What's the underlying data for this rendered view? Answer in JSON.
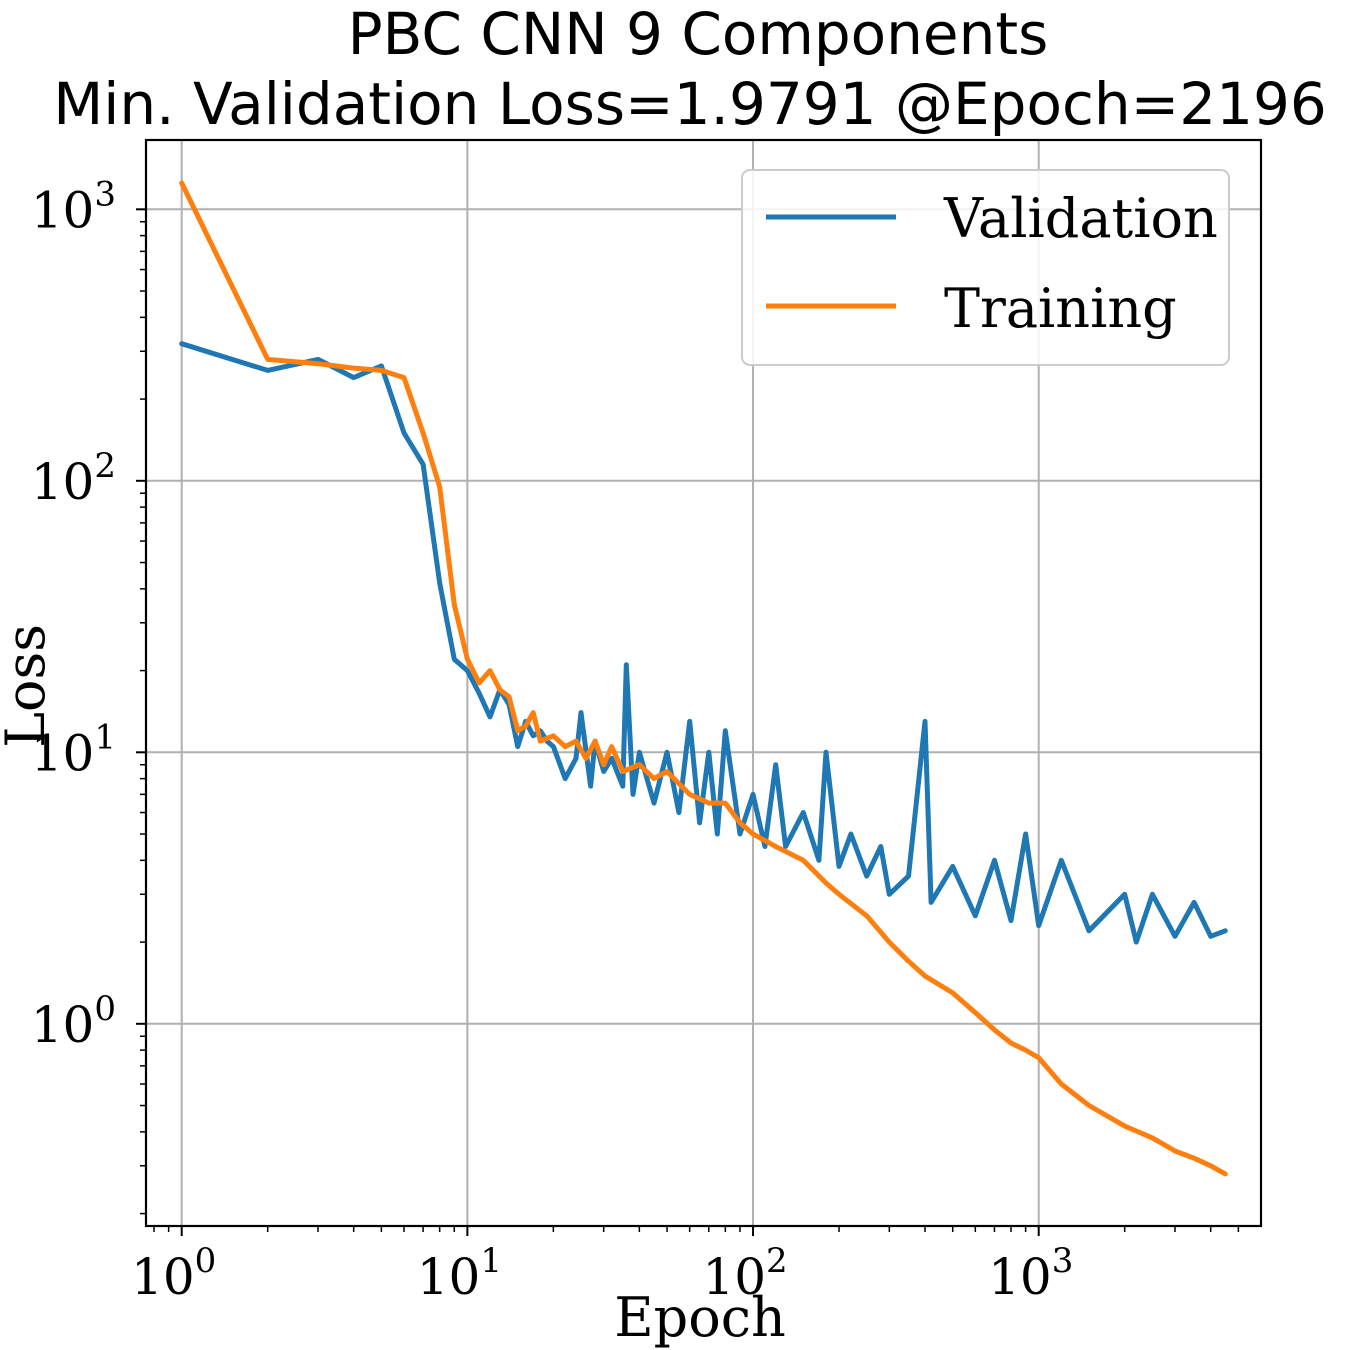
{
  "chart_data": {
    "type": "line",
    "title": "PBC CNN 9 Components",
    "subtitle": "Min. Validation Loss=1.9791 @Epoch=2196",
    "xlabel": "Epoch",
    "ylabel": "Loss",
    "xscale": "log",
    "yscale": "log",
    "xlim": [
      0.75,
      6000
    ],
    "ylim": [
      0.18,
      1800
    ],
    "grid": true,
    "legend_position": "top-right",
    "x_ticks": [
      {
        "base": "10",
        "exp": "0",
        "value": 1
      },
      {
        "base": "10",
        "exp": "1",
        "value": 10
      },
      {
        "base": "10",
        "exp": "2",
        "value": 100
      },
      {
        "base": "10",
        "exp": "3",
        "value": 1000
      }
    ],
    "y_ticks": [
      {
        "base": "10",
        "exp": "0",
        "value": 1
      },
      {
        "base": "10",
        "exp": "1",
        "value": 10
      },
      {
        "base": "10",
        "exp": "2",
        "value": 100
      },
      {
        "base": "10",
        "exp": "3",
        "value": 1000
      }
    ],
    "series": [
      {
        "name": "Validation",
        "color": "#1f77b4",
        "points": [
          [
            1,
            320
          ],
          [
            2,
            255
          ],
          [
            3,
            280
          ],
          [
            4,
            240
          ],
          [
            5,
            265
          ],
          [
            6,
            150
          ],
          [
            7,
            115
          ],
          [
            8,
            42
          ],
          [
            9,
            22
          ],
          [
            10,
            20
          ],
          [
            11,
            16.5
          ],
          [
            12,
            13.5
          ],
          [
            13,
            17
          ],
          [
            14,
            15
          ],
          [
            15,
            10.5
          ],
          [
            16,
            13
          ],
          [
            17,
            11.5
          ],
          [
            18,
            12
          ],
          [
            19,
            11
          ],
          [
            20,
            10.5
          ],
          [
            22,
            8
          ],
          [
            24,
            9.5
          ],
          [
            25,
            14
          ],
          [
            27,
            7.5
          ],
          [
            28,
            11
          ],
          [
            30,
            8.5
          ],
          [
            32,
            9.5
          ],
          [
            35,
            7.5
          ],
          [
            36,
            21
          ],
          [
            38,
            7
          ],
          [
            40,
            10
          ],
          [
            45,
            6.5
          ],
          [
            50,
            10
          ],
          [
            55,
            6
          ],
          [
            60,
            13
          ],
          [
            65,
            5.5
          ],
          [
            70,
            10
          ],
          [
            75,
            5
          ],
          [
            80,
            12
          ],
          [
            90,
            5
          ],
          [
            100,
            7
          ],
          [
            110,
            4.5
          ],
          [
            120,
            9
          ],
          [
            130,
            4.5
          ],
          [
            150,
            6
          ],
          [
            170,
            4
          ],
          [
            180,
            10
          ],
          [
            200,
            3.8
          ],
          [
            220,
            5
          ],
          [
            250,
            3.5
          ],
          [
            280,
            4.5
          ],
          [
            300,
            3
          ],
          [
            350,
            3.5
          ],
          [
            400,
            13
          ],
          [
            420,
            2.8
          ],
          [
            500,
            3.8
          ],
          [
            600,
            2.5
          ],
          [
            700,
            4
          ],
          [
            800,
            2.4
          ],
          [
            900,
            5
          ],
          [
            1000,
            2.3
          ],
          [
            1200,
            4
          ],
          [
            1500,
            2.2
          ],
          [
            2000,
            3
          ],
          [
            2196,
            2.0
          ],
          [
            2500,
            3
          ],
          [
            3000,
            2.1
          ],
          [
            3500,
            2.8
          ],
          [
            4000,
            2.1
          ],
          [
            4500,
            2.2
          ]
        ]
      },
      {
        "name": "Training",
        "color": "#ff7f0e",
        "points": [
          [
            1,
            1250
          ],
          [
            2,
            280
          ],
          [
            3,
            270
          ],
          [
            4,
            260
          ],
          [
            5,
            255
          ],
          [
            6,
            240
          ],
          [
            7,
            150
          ],
          [
            8,
            95
          ],
          [
            9,
            35
          ],
          [
            10,
            22
          ],
          [
            11,
            18
          ],
          [
            12,
            20
          ],
          [
            13,
            17
          ],
          [
            14,
            16
          ],
          [
            15,
            12
          ],
          [
            16,
            12.5
          ],
          [
            17,
            14
          ],
          [
            18,
            11
          ],
          [
            20,
            11.5
          ],
          [
            22,
            10.5
          ],
          [
            24,
            11
          ],
          [
            26,
            9.5
          ],
          [
            28,
            11
          ],
          [
            30,
            9
          ],
          [
            32,
            10.5
          ],
          [
            35,
            8.5
          ],
          [
            40,
            9
          ],
          [
            45,
            8
          ],
          [
            50,
            8.5
          ],
          [
            60,
            7
          ],
          [
            70,
            6.5
          ],
          [
            80,
            6.5
          ],
          [
            90,
            5.5
          ],
          [
            100,
            5
          ],
          [
            120,
            4.5
          ],
          [
            150,
            4
          ],
          [
            180,
            3.3
          ],
          [
            200,
            3
          ],
          [
            250,
            2.5
          ],
          [
            300,
            2
          ],
          [
            350,
            1.7
          ],
          [
            400,
            1.5
          ],
          [
            500,
            1.3
          ],
          [
            600,
            1.1
          ],
          [
            700,
            0.95
          ],
          [
            800,
            0.85
          ],
          [
            900,
            0.8
          ],
          [
            1000,
            0.75
          ],
          [
            1200,
            0.6
          ],
          [
            1500,
            0.5
          ],
          [
            2000,
            0.42
          ],
          [
            2500,
            0.38
          ],
          [
            3000,
            0.34
          ],
          [
            3500,
            0.32
          ],
          [
            4000,
            0.3
          ],
          [
            4500,
            0.28
          ]
        ]
      }
    ]
  }
}
